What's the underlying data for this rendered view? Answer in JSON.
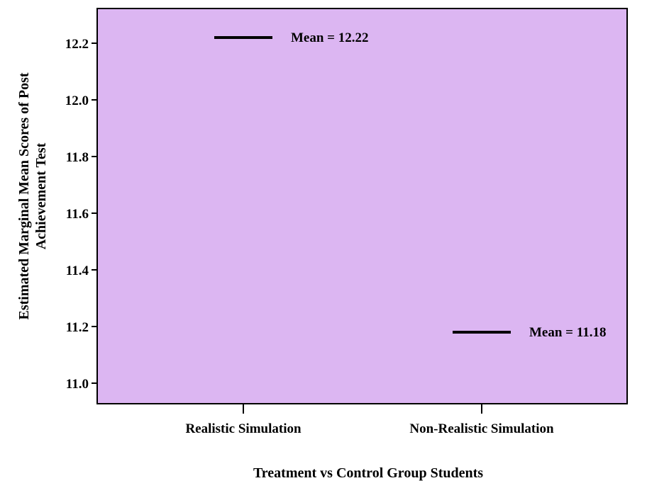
{
  "chart_data": {
    "type": "line",
    "title": "",
    "xlabel": "Treatment vs Control Group Students",
    "ylabel_lines": [
      "Estimated Marginal Mean Scores of Post",
      "Achievement Test"
    ],
    "categories": [
      "Realistic Simulation",
      "Non-Realistic Simulation"
    ],
    "values": [
      12.22,
      11.18
    ],
    "annotations": [
      "Mean = 12.22",
      "Mean = 11.18"
    ],
    "yticks": [
      "11.0",
      "11.2",
      "11.4",
      "11.6",
      "11.8",
      "12.0",
      "12.2"
    ],
    "ylim": [
      10.95,
      12.33
    ],
    "grid": false,
    "legend": "none",
    "colors": {
      "plot_background": "#dcb6f2",
      "line": "#000000",
      "frame": "#000000"
    }
  }
}
